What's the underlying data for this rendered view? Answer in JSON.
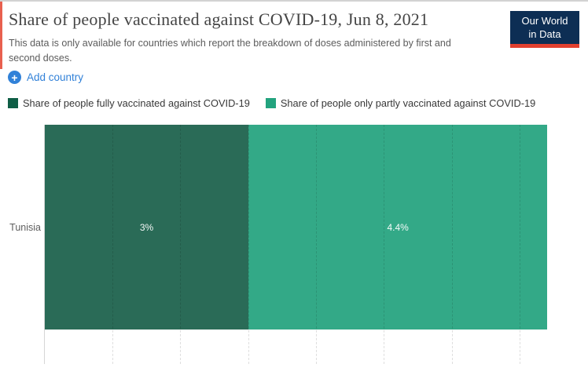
{
  "header": {
    "title": "Share of people vaccinated against COVID-19, Jun 8, 2021",
    "subtitle": "This data is only available for countries which report the breakdown of doses administered by first and second doses.",
    "logo": {
      "line1": "Our World",
      "line2": "in Data"
    }
  },
  "controls": {
    "add_country_label": "Add country",
    "add_icon_glyph": "+"
  },
  "chart_data": {
    "type": "bar",
    "orientation": "horizontal",
    "stacked": true,
    "title": "Share of people vaccinated against COVID-19, Jun 8, 2021",
    "categories": [
      "Tunisia"
    ],
    "series": [
      {
        "name": "Share of people fully vaccinated against COVID-19",
        "values": [
          3
        ],
        "value_labels": [
          "3%"
        ],
        "color": "#2a6b57",
        "swatch_color": "#0f5e46"
      },
      {
        "name": "Share of people only partly vaccinated against COVID-19",
        "values": [
          4.4
        ],
        "value_labels": [
          "4.4%"
        ],
        "color": "#33a987",
        "swatch_color": "#23a37e"
      }
    ],
    "xlim": [
      0,
      8
    ],
    "gridline_interval": 1,
    "grid": true,
    "legend_position": "top",
    "x_tick_labels_visible": false
  },
  "colors": {
    "accent_left": "#e8604f",
    "logo_background": "#0d2e54",
    "logo_underline": "#e2402f",
    "link_blue": "#3181d8",
    "axis_line": "#d6d6d6"
  }
}
